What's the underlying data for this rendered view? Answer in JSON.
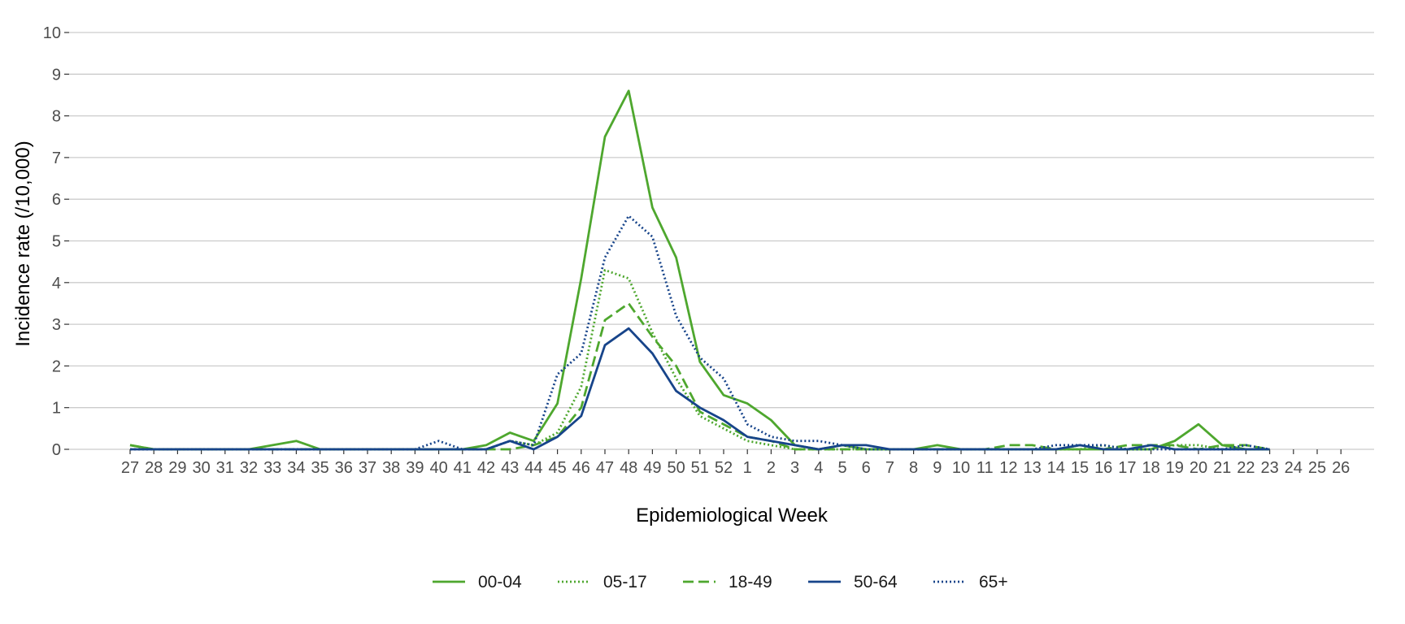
{
  "chart_data": {
    "type": "line",
    "title": "",
    "xlabel": "Epidemiological Week",
    "ylabel": "Incidence rate (/10,000)",
    "ylim": [
      0,
      10
    ],
    "yticks": [
      "0",
      "1",
      "2",
      "3",
      "4",
      "5",
      "6",
      "7",
      "8",
      "9",
      "10"
    ],
    "grid": "horizontal",
    "legend_position": "bottom",
    "categories": [
      "27",
      "28",
      "29",
      "30",
      "31",
      "32",
      "33",
      "34",
      "35",
      "36",
      "37",
      "38",
      "39",
      "40",
      "41",
      "42",
      "43",
      "44",
      "45",
      "46",
      "47",
      "48",
      "49",
      "50",
      "51",
      "52",
      "1",
      "2",
      "3",
      "4",
      "5",
      "6",
      "7",
      "8",
      "9",
      "10",
      "11",
      "12",
      "13",
      "14",
      "15",
      "16",
      "17",
      "18",
      "19",
      "20",
      "21",
      "22",
      "23",
      "24",
      "25",
      "26"
    ],
    "series": [
      {
        "name": "00-04",
        "color": "#4ea72e",
        "dash": "solid",
        "values": [
          0.1,
          0,
          0,
          0,
          0,
          0,
          0.1,
          0.2,
          0,
          0,
          0,
          0,
          0,
          0,
          0,
          0.1,
          0.4,
          0.2,
          1.1,
          4.1,
          7.5,
          8.6,
          5.8,
          4.6,
          2.1,
          1.3,
          1.1,
          0.7,
          0.1,
          0,
          0.1,
          0,
          0,
          0,
          0.1,
          0,
          0,
          0,
          0,
          0,
          0,
          0,
          0,
          0,
          0.2,
          0.6,
          0.1,
          0,
          0,
          null,
          null,
          null
        ]
      },
      {
        "name": "05-17",
        "color": "#4ea72e",
        "dash": "dotted",
        "values": [
          0,
          0,
          0,
          0,
          0,
          0,
          0,
          0,
          0,
          0,
          0,
          0,
          0,
          0,
          0,
          0,
          0.2,
          0.1,
          0.4,
          1.5,
          4.3,
          4.1,
          2.8,
          1.7,
          0.8,
          0.5,
          0.2,
          0.1,
          0,
          0,
          0,
          0,
          0,
          0,
          0,
          0,
          0,
          0,
          0,
          0,
          0,
          0.1,
          0,
          0,
          0.1,
          0.1,
          0,
          0,
          0,
          null,
          null,
          null
        ]
      },
      {
        "name": "18-49",
        "color": "#4ea72e",
        "dash": "dashed",
        "values": [
          0.1,
          0,
          0,
          0,
          0,
          0,
          0,
          0,
          0,
          0,
          0,
          0,
          0,
          0,
          0,
          0,
          0,
          0.1,
          0.3,
          1,
          3.1,
          3.5,
          2.7,
          2,
          0.9,
          0.6,
          0.3,
          0.2,
          0,
          0,
          0,
          0,
          0,
          0,
          0,
          0,
          0,
          0.1,
          0.1,
          0,
          0.1,
          0,
          0.1,
          0.1,
          0.1,
          0,
          0.1,
          0.1,
          0,
          null,
          null,
          null
        ]
      },
      {
        "name": "50-64",
        "color": "#17448a",
        "dash": "solid",
        "values": [
          0,
          0,
          0,
          0,
          0,
          0,
          0,
          0,
          0,
          0,
          0,
          0,
          0,
          0,
          0,
          0,
          0.2,
          0,
          0.3,
          0.8,
          2.5,
          2.9,
          2.3,
          1.4,
          1,
          0.7,
          0.3,
          0.2,
          0.1,
          0,
          0.1,
          0.1,
          0,
          0,
          0,
          0,
          0,
          0,
          0,
          0,
          0.1,
          0,
          0,
          0.1,
          0,
          0,
          0,
          0,
          0,
          null,
          null,
          null
        ]
      },
      {
        "name": "65+",
        "color": "#17448a",
        "dash": "dotted",
        "values": [
          0,
          0,
          0,
          0,
          0,
          0,
          0,
          0,
          0,
          0,
          0,
          0,
          0,
          0.2,
          0,
          0,
          0.2,
          0.1,
          1.8,
          2.3,
          4.6,
          5.6,
          5.1,
          3.2,
          2.2,
          1.7,
          0.6,
          0.3,
          0.2,
          0.2,
          0.1,
          0,
          0,
          0,
          0,
          0,
          0,
          0,
          0,
          0.1,
          0.1,
          0.1,
          0,
          0,
          0,
          0,
          0,
          0.1,
          0,
          null,
          null,
          null
        ]
      }
    ]
  }
}
